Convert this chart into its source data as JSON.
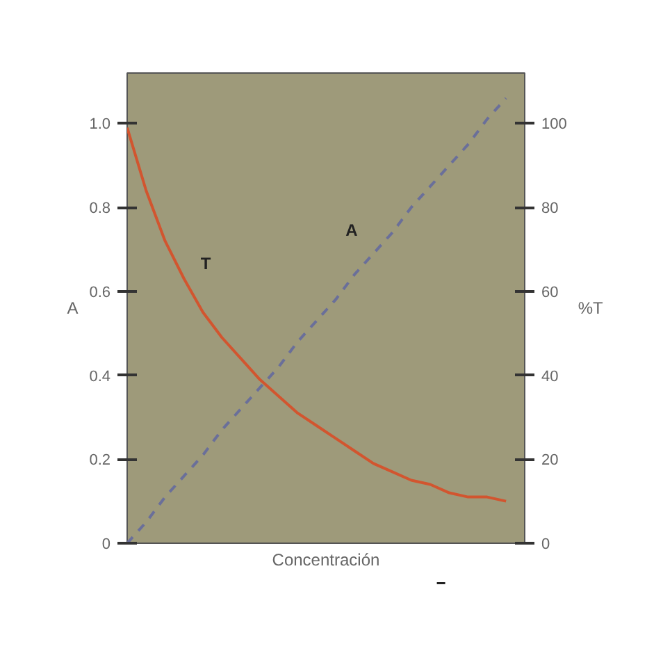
{
  "chart_data": {
    "type": "line",
    "xlabel": "Concentración",
    "ylabel": "A",
    "y2label": "%T",
    "categories": [
      null,
      null,
      null,
      null,
      null,
      null,
      null,
      null,
      null,
      null,
      null,
      null,
      null,
      null,
      null,
      null,
      null,
      null,
      null,
      null,
      null
    ],
    "ylim": [
      0,
      1.12
    ],
    "yticks": [
      0,
      0.2,
      0.4,
      0.6,
      0.8,
      {
        "value": 1,
        "label": "1.0"
      }
    ],
    "y2lim": [
      0,
      112
    ],
    "y2ticks": [
      0,
      20,
      40,
      60,
      80,
      100
    ],
    "grid": false,
    "series": [
      {
        "name": "A",
        "color": "#6a6f9a",
        "line_style": "dashed",
        "values": [
          0,
          0.05,
          0.11,
          0.16,
          0.21,
          0.27,
          0.32,
          0.37,
          0.42,
          0.48,
          0.53,
          0.58,
          0.64,
          0.69,
          0.74,
          0.8,
          0.85,
          0.9,
          0.95,
          1.01,
          1.06
        ]
      },
      {
        "name": "T",
        "color": "#d2552f",
        "line_style": "solid",
        "axis": "y2",
        "values": [
          99,
          84,
          72,
          63,
          55,
          49,
          44,
          39,
          35,
          31,
          28,
          25,
          22,
          19,
          17,
          15,
          14,
          12,
          11,
          11,
          10
        ]
      }
    ]
  }
}
